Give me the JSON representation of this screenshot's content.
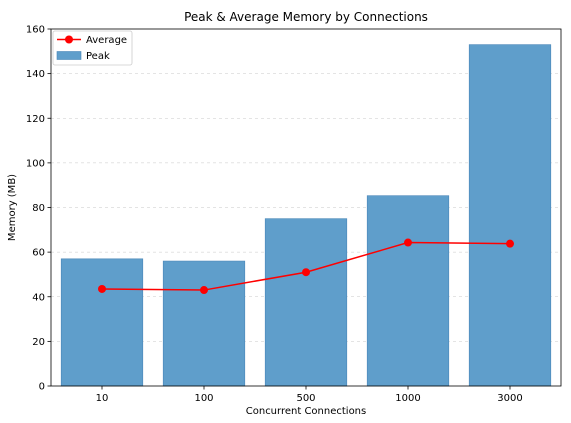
{
  "chart_data": {
    "type": "bar",
    "title": "Peak & Average Memory by Connections",
    "xlabel": "Concurrent Connections",
    "ylabel": "Memory (MB)",
    "categories": [
      "10",
      "100",
      "500",
      "1000",
      "3000"
    ],
    "ylim": [
      0,
      160
    ],
    "yticks": [
      0,
      20,
      40,
      60,
      80,
      100,
      120,
      140,
      160
    ],
    "grid": "y-dashed",
    "legend_position": "top-left",
    "series": [
      {
        "name": "Average",
        "kind": "line",
        "color": "#ff0000",
        "marker": "circle",
        "values": [
          43.5,
          43,
          51,
          64.3,
          63.8
        ]
      },
      {
        "name": "Peak",
        "kind": "bar",
        "color": "#5f9ecb",
        "values": [
          57,
          56,
          75,
          85.3,
          153
        ]
      }
    ]
  }
}
